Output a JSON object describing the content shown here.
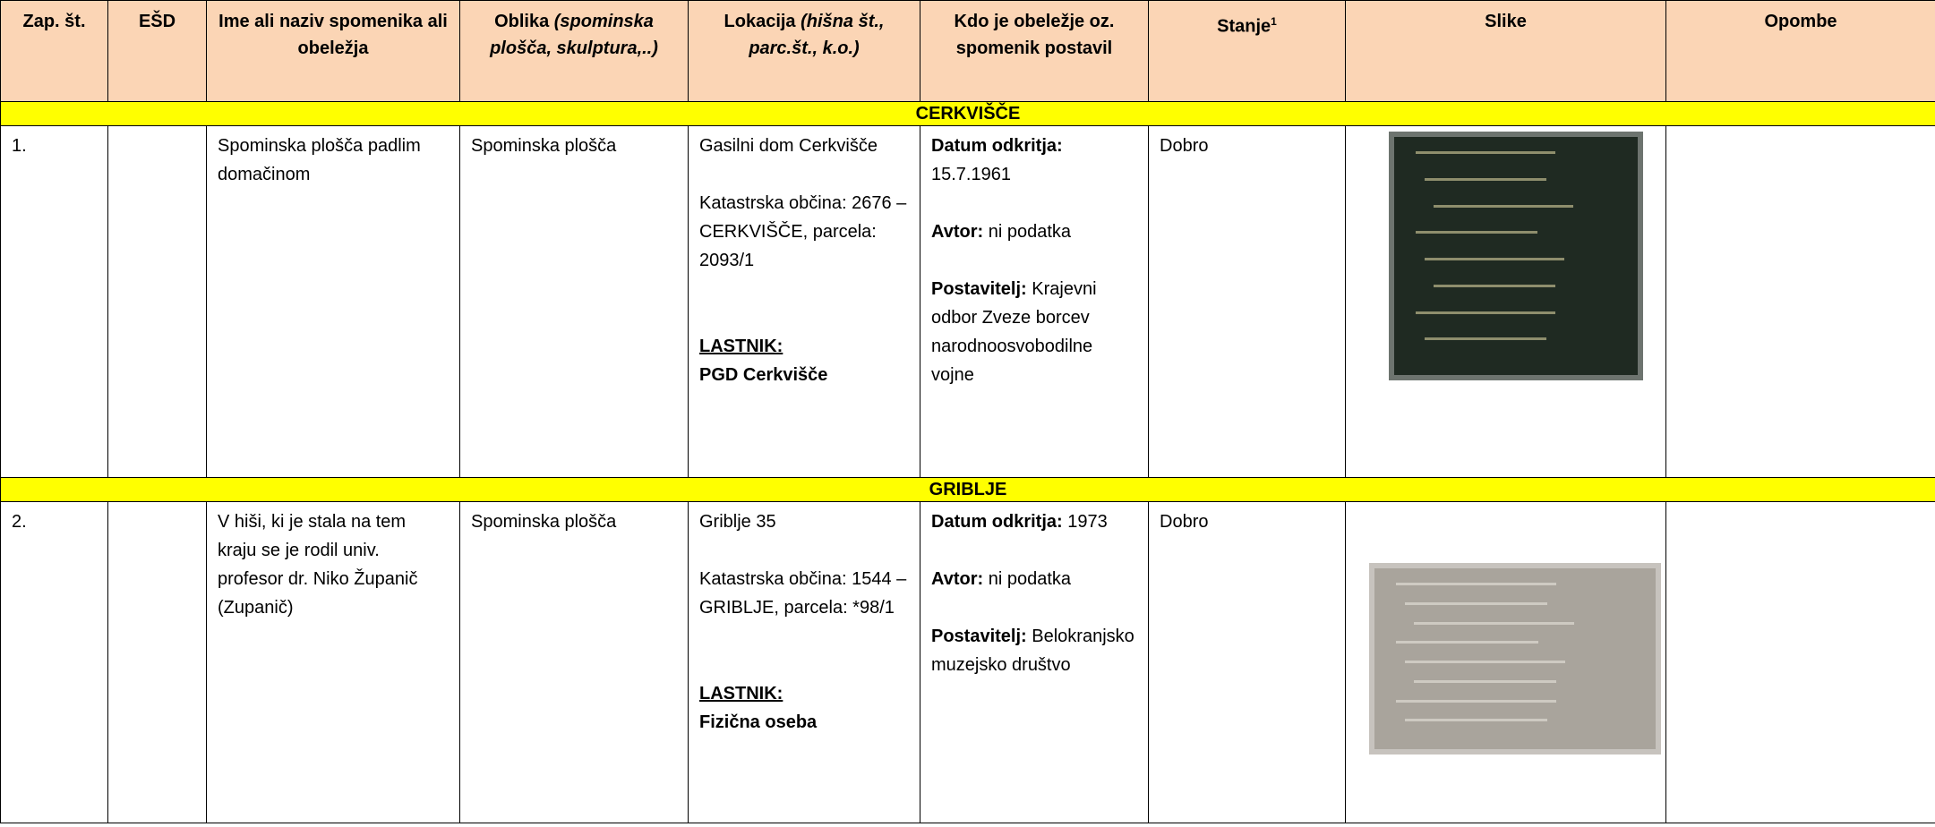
{
  "header": {
    "columns": [
      {
        "text": "Zap. št."
      },
      {
        "text": "EŠD"
      },
      {
        "text": "Ime ali naziv spomenika ali obeležja"
      },
      {
        "text": "Oblika",
        "note": "(spominska plošča, skulptura,..)"
      },
      {
        "text": "Lokacija",
        "note": "(hišna št., parc.št., k.o.)"
      },
      {
        "text": "Kdo je obeležje oz. spomenik postavil"
      },
      {
        "text": "Stanje",
        "sup": "1"
      },
      {
        "text": "Slike"
      },
      {
        "text": "Opombe"
      }
    ]
  },
  "sections": [
    {
      "title": "CERKVIŠČE",
      "rows": [
        {
          "zap": "1.",
          "name": "Spominska plošča padlim domačinom",
          "form": "Spominska plošča",
          "location": {
            "address": "Gasilni dom Cerkvišče",
            "cadastre": "Katastrska občina: 2676 – CERKVIŠČE, parcela: 2093/1",
            "owner_label": "LASTNIK:",
            "owner": "PGD Cerkvišče"
          },
          "placed_by": [
            {
              "label": "Datum odkritja:",
              "value": "15.7.1961"
            },
            {
              "label": "Avtor:",
              "value": "ni podatka"
            },
            {
              "label": "Postavitelj:",
              "value": "Krajevni odbor Zveze borcev narodnoosvobodilne vojne"
            }
          ],
          "state": "Dobro"
        }
      ]
    },
    {
      "title": "GRIBLJE",
      "rows": [
        {
          "zap": "2.",
          "name": "V hiši, ki je stala na tem kraju se je rodil univ. profesor dr. Niko Županič (Zupanič)",
          "form": "Spominska plošča",
          "location": {
            "address": "Griblje 35",
            "cadastre": "Katastrska občina: 1544 – GRIBLJE, parcela: *98/1",
            "owner_label": "LASTNIK:",
            "owner": "Fizična oseba"
          },
          "placed_by": [
            {
              "label": "Datum odkritja:",
              "value": "1973"
            },
            {
              "label": "Avtor:",
              "value": "ni podatka"
            },
            {
              "label": "Postavitelj:",
              "value": "Belokranjsko muzejsko društvo"
            }
          ],
          "state": "Dobro"
        }
      ]
    }
  ]
}
